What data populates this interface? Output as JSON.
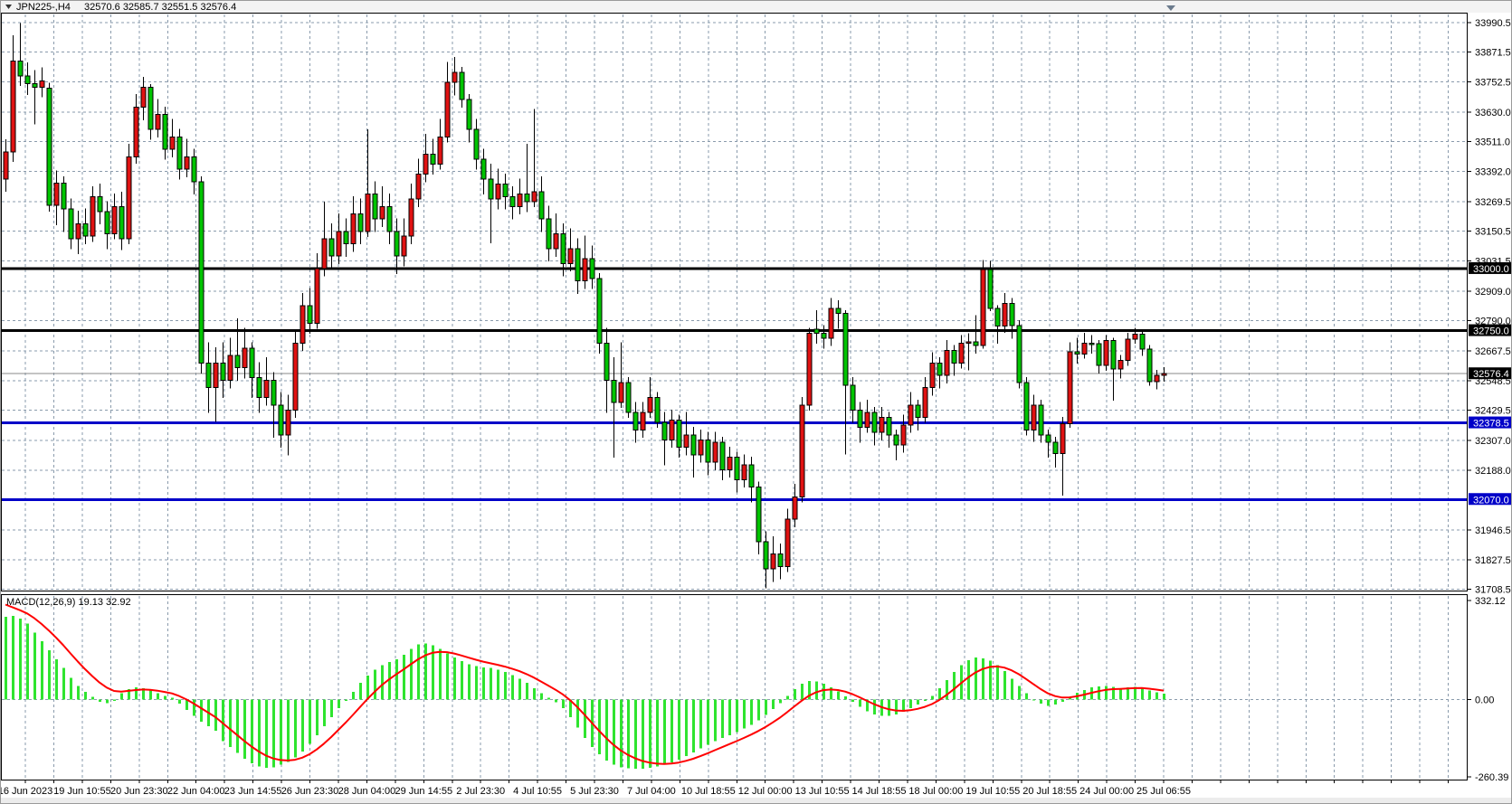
{
  "window": {
    "symbol_timeframe": "JPN225-,H4",
    "ohlc_summary": "32570.6 32585.7 32551.5 32576.4"
  },
  "macd_panel": {
    "label": "MACD(12,26,9) 19.13 32.92"
  },
  "price_axis": {
    "tick_labels": [
      "33990.5",
      "33871.5",
      "33752.5",
      "33630.0",
      "33511.0",
      "33392.0",
      "33269.5",
      "33150.5",
      "33031.5",
      "32909.0",
      "32790.0",
      "32667.5",
      "32548.5",
      "32429.5",
      "32307.0",
      "32188.0",
      "31946.5",
      "31827.5",
      "31708.5"
    ],
    "markers": [
      {
        "label": "33000.0",
        "price": 33000.0,
        "bg": "#000000"
      },
      {
        "label": "32750.0",
        "price": 32750.0,
        "bg": "#000000"
      },
      {
        "label": "32576.4",
        "price": 32576.4,
        "bg": "#000000"
      },
      {
        "label": "32378.5",
        "price": 32378.5,
        "bg": "#0000c8"
      },
      {
        "label": "32070.0",
        "price": 32070.0,
        "bg": "#0000c8"
      }
    ]
  },
  "macd_axis": {
    "tick_labels": [
      "332.12",
      "0.00",
      "-260.39"
    ]
  },
  "time_axis": {
    "labels": [
      "16 Jun 2023",
      "19 Jun 10:55",
      "20 Jun 23:30",
      "22 Jun 04:00",
      "23 Jun 14:55",
      "26 Jun 23:30",
      "28 Jun 04:00",
      "29 Jun 14:55",
      "2 Jul 23:30",
      "4 Jul 10:55",
      "5 Jul 23:30",
      "7 Jul 04:00",
      "10 Jul 18:55",
      "12 Jul 00:00",
      "13 Jul 10:55",
      "14 Jul 18:55",
      "18 Jul 00:00",
      "19 Jul 10:55",
      "20 Jul 18:55",
      "24 Jul 00:00",
      "25 Jul 06:55"
    ]
  },
  "colors": {
    "bull_candle": "#e01212",
    "bear_candle": "#00c400",
    "wick": "#000000",
    "grid": "#8a9bac",
    "macd_bar": "#2fe42f",
    "signal_line": "#ff0000",
    "hline_black": "#000000",
    "hline_blue": "#0000c8",
    "current_price_line": "#8a8a8a",
    "marker_text": "#ffffff",
    "axis_text": "#000000",
    "panel_bg": "#ffffff",
    "strip_bg": "#f3f3f3",
    "border": "#000000",
    "shift_marker": "#6b7b8d"
  },
  "chart_data": {
    "type": "candlestick",
    "symbol": "JPN225-",
    "timeframe": "H4",
    "title": "JPN225-,H4 32570.6 32585.7 32551.5 32576.4",
    "note_color_convention": "red body = bullish, green body = bearish",
    "price_ticks": [
      33990.5,
      33871.5,
      33752.5,
      33630.0,
      33511.0,
      33392.0,
      33269.5,
      33150.5,
      33031.5,
      32909.0,
      32790.0,
      32667.5,
      32548.5,
      32429.5,
      32307.0,
      32188.0,
      31946.5,
      31827.5,
      31708.5
    ],
    "extra_grid_price": 32067.3,
    "price_axis_range": [
      31708.5,
      33990.5
    ],
    "horizontal_lines": [
      {
        "price": 33000.0,
        "color": "#000000"
      },
      {
        "price": 32750.0,
        "color": "#000000"
      },
      {
        "price": 32378.5,
        "color": "#0000c8"
      },
      {
        "price": 32070.0,
        "color": "#0000c8"
      }
    ],
    "current_price": 32576.4,
    "time_labels": [
      "16 Jun 2023",
      "19 Jun 10:55",
      "20 Jun 23:30",
      "22 Jun 04:00",
      "23 Jun 14:55",
      "26 Jun 23:30",
      "28 Jun 04:00",
      "29 Jun 14:55",
      "2 Jul 23:30",
      "4 Jul 10:55",
      "5 Jul 23:30",
      "7 Jul 04:00",
      "10 Jul 18:55",
      "12 Jul 00:00",
      "13 Jul 10:55",
      "14 Jul 18:55",
      "18 Jul 00:00",
      "19 Jul 10:55",
      "20 Jul 18:55",
      "24 Jul 00:00",
      "25 Jul 06:55"
    ],
    "candles_ohlc": [
      [
        33360,
        33520,
        33310,
        33470
      ],
      [
        33470,
        33940,
        33430,
        33835
      ],
      [
        33835,
        33988,
        33735,
        33775
      ],
      [
        33775,
        33830,
        33700,
        33745
      ],
      [
        33745,
        33800,
        33580,
        33730
      ],
      [
        33730,
        33810,
        33690,
        33755
      ],
      [
        33727,
        33748,
        33230,
        33254
      ],
      [
        33254,
        33395,
        33175,
        33344
      ],
      [
        33344,
        33372,
        33148,
        33240
      ],
      [
        33240,
        33282,
        33078,
        33120
      ],
      [
        33120,
        33232,
        33058,
        33180
      ],
      [
        33180,
        33242,
        33098,
        33130
      ],
      [
        33130,
        33332,
        33108,
        33290
      ],
      [
        33290,
        33342,
        33178,
        33230
      ],
      [
        33230,
        33272,
        33078,
        33140
      ],
      [
        33140,
        33302,
        33118,
        33250
      ],
      [
        33250,
        33310,
        33075,
        33120
      ],
      [
        33120,
        33502,
        33098,
        33450
      ],
      [
        33450,
        33702,
        33422,
        33650
      ],
      [
        33650,
        33772,
        33598,
        33730
      ],
      [
        33730,
        33742,
        33518,
        33560
      ],
      [
        33560,
        33682,
        33528,
        33620
      ],
      [
        33620,
        33652,
        33438,
        33480
      ],
      [
        33480,
        33602,
        33448,
        33530
      ],
      [
        33530,
        33562,
        33358,
        33400
      ],
      [
        33400,
        33522,
        33368,
        33450
      ],
      [
        33450,
        33482,
        33298,
        33350
      ],
      [
        33350,
        33372,
        32578,
        32620
      ],
      [
        32620,
        32702,
        32418,
        32520
      ],
      [
        32520,
        32682,
        32382,
        32620
      ],
      [
        32620,
        32702,
        32478,
        32550
      ],
      [
        32550,
        32722,
        32518,
        32650
      ],
      [
        32650,
        32800,
        32548,
        32600
      ],
      [
        32600,
        32762,
        32558,
        32680
      ],
      [
        32680,
        32702,
        32478,
        32560
      ],
      [
        32560,
        32622,
        32418,
        32480
      ],
      [
        32480,
        32642,
        32448,
        32550
      ],
      [
        32550,
        32582,
        32318,
        32450
      ],
      [
        32450,
        32502,
        32278,
        32330
      ],
      [
        32330,
        32492,
        32248,
        32430
      ],
      [
        32430,
        32752,
        32398,
        32700
      ],
      [
        32700,
        32902,
        32668,
        32850
      ],
      [
        32850,
        32922,
        32738,
        32780
      ],
      [
        32780,
        33062,
        32758,
        33000
      ],
      [
        33000,
        33270,
        32968,
        33120
      ],
      [
        33120,
        33182,
        32998,
        33050
      ],
      [
        33050,
        33222,
        33018,
        33150
      ],
      [
        33150,
        33202,
        33048,
        33100
      ],
      [
        33100,
        33292,
        33068,
        33220
      ],
      [
        33220,
        33282,
        33098,
        33150
      ],
      [
        33150,
        33560,
        33128,
        33300
      ],
      [
        33300,
        33352,
        33148,
        33200
      ],
      [
        33200,
        33332,
        33168,
        33250
      ],
      [
        33250,
        33302,
        33098,
        33150
      ],
      [
        33150,
        33202,
        32978,
        33050
      ],
      [
        33050,
        33202,
        33008,
        33130
      ],
      [
        33130,
        33342,
        33098,
        33280
      ],
      [
        33280,
        33442,
        33248,
        33380
      ],
      [
        33380,
        33542,
        33348,
        33460
      ],
      [
        33460,
        33522,
        33378,
        33420
      ],
      [
        33420,
        33602,
        33398,
        33530
      ],
      [
        33530,
        33832,
        33508,
        33750
      ],
      [
        33750,
        33852,
        33698,
        33790
      ],
      [
        33790,
        33812,
        33648,
        33680
      ],
      [
        33680,
        33702,
        33508,
        33560
      ],
      [
        33560,
        33602,
        33398,
        33440
      ],
      [
        33440,
        33482,
        33298,
        33360
      ],
      [
        33360,
        33422,
        33102,
        33280
      ],
      [
        33280,
        33402,
        33238,
        33340
      ],
      [
        33340,
        33382,
        33238,
        33290
      ],
      [
        33290,
        33332,
        33198,
        33250
      ],
      [
        33250,
        33362,
        33218,
        33300
      ],
      [
        33300,
        33502,
        33228,
        33270
      ],
      [
        33270,
        33642,
        33248,
        33310
      ],
      [
        33310,
        33372,
        33148,
        33200
      ],
      [
        33200,
        33252,
        33028,
        33080
      ],
      [
        33080,
        33222,
        33048,
        33140
      ],
      [
        33140,
        33182,
        32968,
        33020
      ],
      [
        33020,
        33162,
        32988,
        33080
      ],
      [
        33080,
        33122,
        32898,
        32950
      ],
      [
        32950,
        33132,
        32918,
        33040
      ],
      [
        33040,
        33092,
        32918,
        32960
      ],
      [
        32960,
        32982,
        32658,
        32700
      ],
      [
        32700,
        32762,
        32418,
        32550
      ],
      [
        32550,
        32642,
        32238,
        32460
      ],
      [
        32460,
        32702,
        32438,
        32540
      ],
      [
        32540,
        32562,
        32398,
        32420
      ],
      [
        32420,
        32462,
        32298,
        32350
      ],
      [
        32350,
        32462,
        32318,
        32420
      ],
      [
        32420,
        32562,
        32398,
        32480
      ],
      [
        32480,
        32502,
        32358,
        32380
      ],
      [
        32380,
        32422,
        32208,
        32310
      ],
      [
        32310,
        32432,
        32278,
        32390
      ],
      [
        32390,
        32412,
        32238,
        32280
      ],
      [
        32280,
        32422,
        32248,
        32330
      ],
      [
        32330,
        32362,
        32158,
        32250
      ],
      [
        32250,
        32352,
        32218,
        32310
      ],
      [
        32310,
        32342,
        32168,
        32220
      ],
      [
        32220,
        32342,
        32188,
        32300
      ],
      [
        32300,
        32322,
        32148,
        32190
      ],
      [
        32190,
        32282,
        32158,
        32240
      ],
      [
        32240,
        32262,
        32098,
        32150
      ],
      [
        32150,
        32252,
        32118,
        32210
      ],
      [
        32210,
        32242,
        32058,
        32120
      ],
      [
        32120,
        32142,
        31848,
        31900
      ],
      [
        31900,
        31942,
        31712,
        31790
      ],
      [
        31790,
        31922,
        31738,
        31850
      ],
      [
        31850,
        31892,
        31748,
        31800
      ],
      [
        31800,
        32032,
        31778,
        31990
      ],
      [
        31990,
        32132,
        31958,
        32080
      ],
      [
        32080,
        32482,
        32058,
        32450
      ],
      [
        32450,
        32762,
        32428,
        32740
      ],
      [
        32755,
        32832,
        32698,
        32740
      ],
      [
        32740,
        32772,
        32678,
        32720
      ],
      [
        32720,
        32882,
        32688,
        32840
      ],
      [
        32840,
        32872,
        32758,
        32820
      ],
      [
        32820,
        32832,
        32252,
        32530
      ],
      [
        32530,
        32562,
        32378,
        32430
      ],
      [
        32430,
        32462,
        32298,
        32360
      ],
      [
        32360,
        32472,
        32338,
        32420
      ],
      [
        32420,
        32442,
        32288,
        32340
      ],
      [
        32340,
        32442,
        32308,
        32400
      ],
      [
        32400,
        32422,
        32278,
        32330
      ],
      [
        32330,
        32352,
        32228,
        32290
      ],
      [
        32290,
        32412,
        32258,
        32370
      ],
      [
        32370,
        32502,
        32338,
        32450
      ],
      [
        32450,
        32472,
        32348,
        32400
      ],
      [
        32400,
        32562,
        32378,
        32520
      ],
      [
        32520,
        32662,
        32488,
        32620
      ],
      [
        32620,
        32642,
        32518,
        32570
      ],
      [
        32570,
        32712,
        32538,
        32670
      ],
      [
        32670,
        32692,
        32568,
        32620
      ],
      [
        32620,
        32732,
        32598,
        32700
      ],
      [
        32700,
        32740,
        32590,
        32705
      ],
      [
        32705,
        32812,
        32658,
        32690
      ],
      [
        32690,
        33035,
        32678,
        32996
      ],
      [
        32996,
        33031,
        32828,
        32840
      ],
      [
        32840,
        32852,
        32698,
        32768
      ],
      [
        32768,
        32902,
        32742,
        32860
      ],
      [
        32860,
        32882,
        32718,
        32770
      ],
      [
        32770,
        32792,
        32518,
        32540
      ],
      [
        32540,
        32562,
        32328,
        32350
      ],
      [
        32350,
        32492,
        32302,
        32450
      ],
      [
        32450,
        32472,
        32298,
        32330
      ],
      [
        32330,
        32352,
        32238,
        32300
      ],
      [
        32300,
        32322,
        32198,
        32255
      ],
      [
        32255,
        32402,
        32086,
        32375
      ],
      [
        32375,
        32702,
        32358,
        32665
      ],
      [
        32665,
        32722,
        32618,
        32655
      ],
      [
        32655,
        32742,
        32638,
        32700
      ],
      [
        32700,
        32732,
        32658,
        32697
      ],
      [
        32697,
        32712,
        32578,
        32610
      ],
      [
        32610,
        32732,
        32588,
        32710
      ],
      [
        32710,
        32722,
        32468,
        32595
      ],
      [
        32595,
        32652,
        32558,
        32630
      ],
      [
        32630,
        32742,
        32608,
        32715
      ],
      [
        32715,
        32762,
        32698,
        32735
      ],
      [
        32735,
        32755,
        32648,
        32675
      ],
      [
        32675,
        32692,
        32528,
        32545
      ],
      [
        32545,
        32592,
        32514,
        32570
      ],
      [
        32570,
        32602,
        32544,
        32576.4
      ]
    ],
    "macd": {
      "params": "12,26,9",
      "main_last": 19.13,
      "signal_last": 32.92,
      "axis_max": 332.12,
      "axis_min": -260.39,
      "signal_ema_alpha": 0.25,
      "signal_seed": 332.12,
      "histogram": [
        278,
        280,
        272,
        255,
        225,
        195,
        165,
        135,
        105,
        72,
        45,
        25,
        8,
        -8,
        -12,
        -5,
        20,
        35,
        40,
        38,
        30,
        20,
        12,
        5,
        -15,
        -35,
        -55,
        -75,
        -90,
        -105,
        -140,
        -160,
        -180,
        -200,
        -215,
        -225,
        -230,
        -228,
        -220,
        -210,
        -195,
        -175,
        -150,
        -120,
        -90,
        -60,
        -30,
        -5,
        25,
        55,
        80,
        100,
        115,
        125,
        135,
        150,
        170,
        185,
        188,
        182,
        170,
        155,
        140,
        128,
        118,
        112,
        108,
        105,
        100,
        92,
        82,
        70,
        55,
        38,
        20,
        5,
        -10,
        -30,
        -60,
        -95,
        -130,
        -160,
        -185,
        -205,
        -220,
        -228,
        -232,
        -233,
        -233,
        -230,
        -226,
        -220,
        -212,
        -202,
        -190,
        -178,
        -165,
        -152,
        -140,
        -130,
        -120,
        -110,
        -98,
        -85,
        -70,
        -52,
        -32,
        -12,
        12,
        35,
        52,
        62,
        60,
        52,
        40,
        26,
        10,
        -8,
        -25,
        -40,
        -50,
        -55,
        -55,
        -50,
        -42,
        -30,
        -18,
        -5,
        12,
        38,
        65,
        92,
        115,
        132,
        140,
        138,
        130,
        115,
        95,
        70,
        45,
        20,
        0,
        -15,
        -22,
        -18,
        -8,
        8,
        22,
        32,
        40,
        44,
        45,
        42,
        38,
        40,
        42,
        38,
        30,
        24,
        19.13
      ]
    }
  }
}
